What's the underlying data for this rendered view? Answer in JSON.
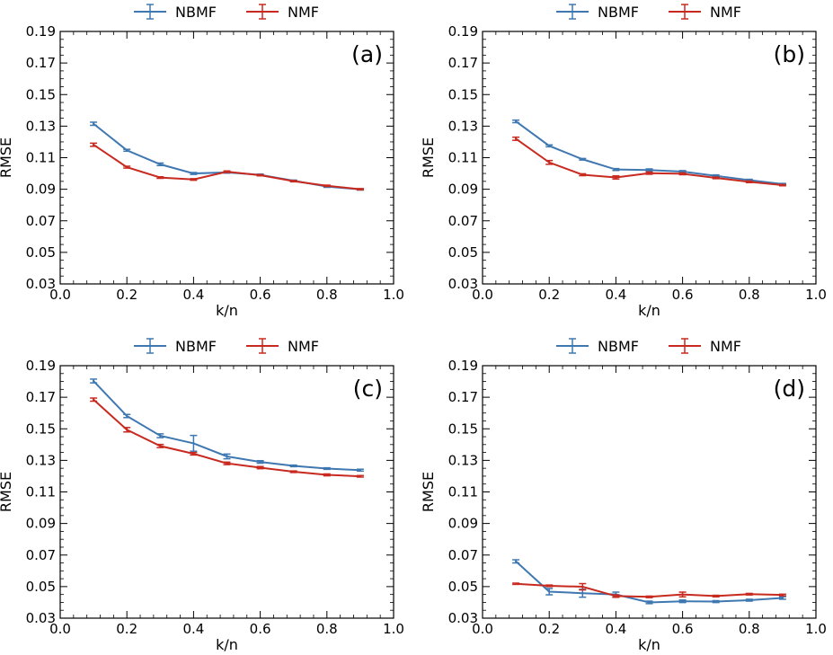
{
  "colors": {
    "NBMF": "#3f78b1",
    "NMF": "#c82a20"
  },
  "chart_data": [
    {
      "type": "line",
      "panel": "(a)",
      "xlabel": "k/n",
      "ylabel": "RMSE",
      "xlim": [
        0.0,
        1.0
      ],
      "ylim": [
        0.03,
        0.19
      ],
      "xticks": [
        "0.0",
        "0.2",
        "0.4",
        "0.6",
        "0.8",
        "1.0"
      ],
      "yticks": [
        "0.03",
        "0.05",
        "0.07",
        "0.09",
        "0.11",
        "0.13",
        "0.15",
        "0.17",
        "0.19"
      ],
      "x": [
        0.1,
        0.2,
        0.3,
        0.4,
        0.5,
        0.6,
        0.7,
        0.8,
        0.9
      ],
      "series": [
        {
          "name": "NBMF",
          "values": [
            0.1315,
            0.1147,
            0.1058,
            0.1,
            0.1007,
            0.0991,
            0.0954,
            0.0917,
            0.0899
          ],
          "errors": [
            0.001,
            0.0006,
            0.0008,
            0.0006,
            0.0005,
            0.0005,
            0.0004,
            0.0005,
            0.0004
          ]
        },
        {
          "name": "NMF",
          "values": [
            0.1182,
            0.104,
            0.0974,
            0.0962,
            0.1011,
            0.0989,
            0.0951,
            0.0922,
            0.09
          ],
          "errors": [
            0.001,
            0.0006,
            0.0005,
            0.0005,
            0.0005,
            0.0004,
            0.0004,
            0.0004,
            0.0004
          ]
        }
      ]
    },
    {
      "type": "line",
      "panel": "(b)",
      "xlabel": "k/n",
      "ylabel": "RMSE",
      "xlim": [
        0.0,
        1.0
      ],
      "ylim": [
        0.03,
        0.19
      ],
      "xticks": [
        "0.0",
        "0.2",
        "0.4",
        "0.6",
        "0.8",
        "1.0"
      ],
      "yticks": [
        "0.03",
        "0.05",
        "0.07",
        "0.09",
        "0.11",
        "0.13",
        "0.15",
        "0.17",
        "0.19"
      ],
      "x": [
        0.1,
        0.2,
        0.3,
        0.4,
        0.5,
        0.6,
        0.7,
        0.8,
        0.9
      ],
      "series": [
        {
          "name": "NBMF",
          "values": [
            0.133,
            0.1175,
            0.109,
            0.1025,
            0.1022,
            0.1012,
            0.0985,
            0.0958,
            0.0933
          ],
          "errors": [
            0.0008,
            0.0006,
            0.0005,
            0.0006,
            0.0007,
            0.0006,
            0.0006,
            0.0005,
            0.0004
          ]
        },
        {
          "name": "NMF",
          "values": [
            0.122,
            0.107,
            0.0992,
            0.0975,
            0.1002,
            0.0998,
            0.0972,
            0.0947,
            0.0926
          ],
          "errors": [
            0.001,
            0.0012,
            0.0006,
            0.001,
            0.0007,
            0.0006,
            0.0005,
            0.0005,
            0.0004
          ]
        }
      ]
    },
    {
      "type": "line",
      "panel": "(c)",
      "xlabel": "k/n",
      "ylabel": "RMSE",
      "xlim": [
        0.0,
        1.0
      ],
      "ylim": [
        0.03,
        0.19
      ],
      "xticks": [
        "0.0",
        "0.2",
        "0.4",
        "0.6",
        "0.8",
        "1.0"
      ],
      "yticks": [
        "0.03",
        "0.05",
        "0.07",
        "0.09",
        "0.11",
        "0.13",
        "0.15",
        "0.17",
        "0.19"
      ],
      "x": [
        0.1,
        0.2,
        0.3,
        0.4,
        0.5,
        0.6,
        0.7,
        0.8,
        0.9
      ],
      "series": [
        {
          "name": "NBMF",
          "values": [
            0.1803,
            0.1581,
            0.1456,
            0.1408,
            0.1325,
            0.129,
            0.1265,
            0.1248,
            0.1238
          ],
          "errors": [
            0.0012,
            0.001,
            0.0012,
            0.005,
            0.0015,
            0.0008,
            0.0005,
            0.0005,
            0.0006
          ]
        },
        {
          "name": "NMF",
          "values": [
            0.1685,
            0.1494,
            0.1391,
            0.1342,
            0.1281,
            0.1254,
            0.1228,
            0.1208,
            0.1199
          ],
          "errors": [
            0.001,
            0.0014,
            0.001,
            0.0008,
            0.0008,
            0.0007,
            0.0005,
            0.0006,
            0.0005
          ]
        }
      ]
    },
    {
      "type": "line",
      "panel": "(d)",
      "xlabel": "k/n",
      "ylabel": "RMSE",
      "xlim": [
        0.0,
        1.0
      ],
      "ylim": [
        0.03,
        0.19
      ],
      "xticks": [
        "0.0",
        "0.2",
        "0.4",
        "0.6",
        "0.8",
        "1.0"
      ],
      "yticks": [
        "0.03",
        "0.05",
        "0.07",
        "0.09",
        "0.11",
        "0.13",
        "0.15",
        "0.17",
        "0.19"
      ],
      "x": [
        0.1,
        0.2,
        0.3,
        0.4,
        0.5,
        0.6,
        0.7,
        0.8,
        0.9
      ],
      "series": [
        {
          "name": "NBMF",
          "values": [
            0.066,
            0.0468,
            0.0458,
            0.045,
            0.04,
            0.0407,
            0.0405,
            0.0414,
            0.0428
          ],
          "errors": [
            0.001,
            0.002,
            0.0025,
            0.0015,
            0.0008,
            0.0008,
            0.0006,
            0.0006,
            0.0008
          ]
        },
        {
          "name": "NMF",
          "values": [
            0.0518,
            0.0505,
            0.0499,
            0.044,
            0.0435,
            0.045,
            0.044,
            0.0452,
            0.0447
          ],
          "errors": [
            0.0004,
            0.0005,
            0.002,
            0.0008,
            0.0005,
            0.0015,
            0.0005,
            0.0005,
            0.0005
          ]
        }
      ]
    }
  ]
}
